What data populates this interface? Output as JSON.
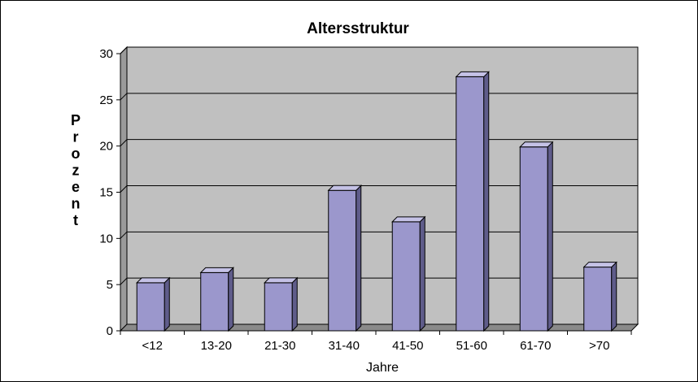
{
  "chart_data": {
    "type": "bar",
    "title": "Altersstruktur",
    "xlabel": "Jahre",
    "ylabel": "Prozent",
    "categories": [
      "<12",
      "13-20",
      "21-30",
      "31-40",
      "41-50",
      "51-60",
      "61-70",
      ">70"
    ],
    "values": [
      5.2,
      6.3,
      5.2,
      15.2,
      11.8,
      27.5,
      19.9,
      6.9
    ],
    "ylim": [
      0,
      30
    ],
    "yticks": [
      0,
      5,
      10,
      15,
      20,
      25,
      30
    ],
    "grid": true,
    "legend": "none",
    "colors": {
      "bar_front": "#9b97cc",
      "bar_side": "#5f5c8a",
      "bar_top": "#c5c2e6",
      "plot_background": "#c0c0c0",
      "wall_side": "#9a9a9a",
      "floor": "#8a8a8a",
      "gridline": "#000000"
    }
  }
}
